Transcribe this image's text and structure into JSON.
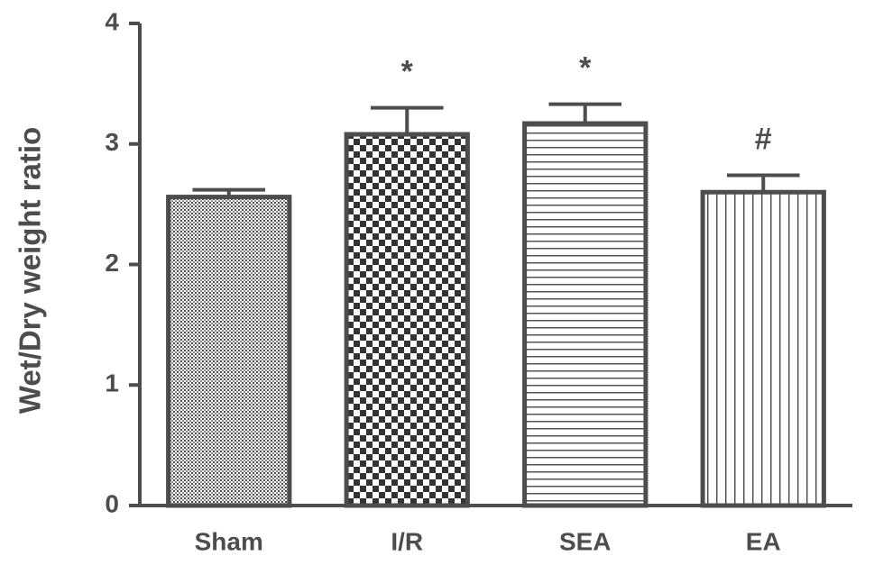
{
  "chart_data": {
    "type": "bar",
    "y_label": "Wet/Dry weight ratio",
    "categories": [
      "Sham",
      "I/R",
      "SEA",
      "EA"
    ],
    "values": [
      2.56,
      3.08,
      3.17,
      2.6
    ],
    "errors": [
      0.06,
      0.22,
      0.16,
      0.14
    ],
    "annotations": [
      null,
      "*",
      "*",
      "#"
    ],
    "patterns": [
      "dots",
      "checker",
      "hlines",
      "vlines"
    ],
    "color": "#4d4d4d",
    "ylim": [
      0,
      4
    ],
    "yticks": [
      0,
      1,
      2,
      3,
      4
    ],
    "grid": false
  }
}
